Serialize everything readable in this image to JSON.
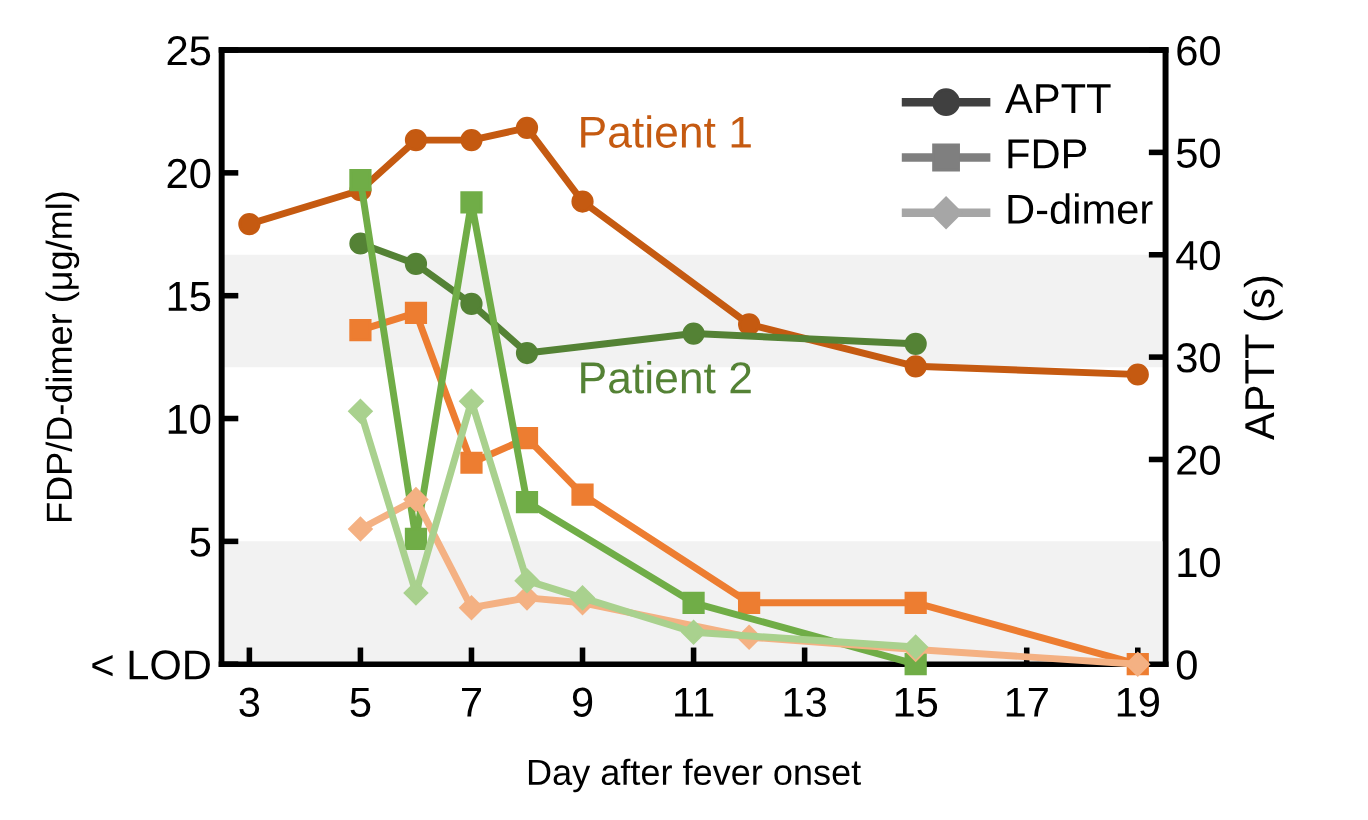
{
  "chart_data": {
    "type": "line",
    "xlabel": "Day after fever onset",
    "ylabel": "FDP/D-dimer (μg/ml)",
    "y2label": "APTT (s)",
    "xlim": [
      2.5,
      19.5
    ],
    "xticks": [
      3,
      5,
      7,
      9,
      11,
      13,
      15,
      17,
      19
    ],
    "ylim": [
      0,
      25
    ],
    "yticks": [
      {
        "value": 0,
        "label": "< LOD"
      },
      5,
      10,
      15,
      20,
      25
    ],
    "y2lim": [
      0,
      60
    ],
    "y2ticks": [
      0,
      10,
      20,
      30,
      40,
      50,
      60
    ],
    "grid": false,
    "line_style": "solid",
    "bands": [
      {
        "axis": "y",
        "from": 0,
        "to": 5,
        "color": "#f2f2f2"
      },
      {
        "axis": "y2",
        "from": 29,
        "to": 40,
        "color": "#f2f2f2"
      }
    ],
    "annotations": [
      "Patient 1",
      "Patient 2",
      "APTT",
      "FDP",
      "D-dimer"
    ],
    "series": [
      {
        "axis": "y2",
        "marker": "circle",
        "color": "#c55a11",
        "x": [
          3,
          5,
          6,
          7,
          8,
          9,
          12,
          15,
          19
        ],
        "values": [
          43.0,
          46.3,
          51.2,
          51.2,
          52.4,
          45.2,
          33.2,
          29.1,
          28.3
        ]
      },
      {
        "axis": "y2",
        "marker": "circle",
        "color": "#548235",
        "x": [
          5,
          6,
          7,
          8,
          11,
          15
        ],
        "values": [
          41.1,
          39.1,
          35.2,
          30.4,
          32.3,
          31.3
        ]
      },
      {
        "marker": "square",
        "color": "#ed7d31",
        "x": [
          5,
          6,
          7,
          8,
          9,
          12,
          15,
          19
        ],
        "values": [
          13.6,
          14.3,
          8.2,
          9.2,
          6.9,
          2.5,
          2.5,
          0
        ]
      },
      {
        "marker": "square",
        "color": "#70ad47",
        "x": [
          5,
          6,
          7,
          8,
          11,
          15
        ],
        "values": [
          19.7,
          5.1,
          18.8,
          6.6,
          2.5,
          0
        ]
      },
      {
        "marker": "diamond",
        "color": "#f4b183",
        "x": [
          5,
          6,
          7,
          8,
          9,
          12,
          15,
          19
        ],
        "values": [
          5.5,
          6.7,
          2.3,
          2.7,
          2.5,
          1.1,
          0.6,
          0
        ]
      },
      {
        "marker": "diamond",
        "color": "#a9d18e",
        "x": [
          5,
          6,
          7,
          8,
          9,
          11,
          15
        ],
        "values": [
          10.3,
          2.9,
          10.7,
          3.4,
          2.7,
          1.3,
          0.7
        ]
      }
    ]
  }
}
